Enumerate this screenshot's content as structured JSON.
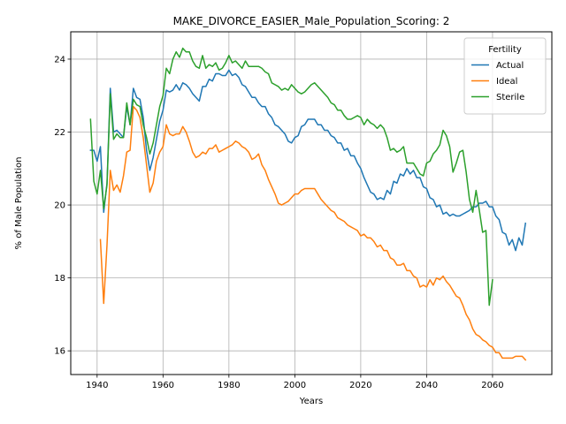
{
  "chart_data": {
    "type": "line",
    "title": "MAKE_DIVORCE_EASIER_Male_Population_Scoring: 2",
    "xlabel": "Years",
    "ylabel": "% of Male Population",
    "xlim": [
      1932,
      2078
    ],
    "ylim": [
      15.35,
      24.75
    ],
    "xticks": [
      1940,
      1960,
      1980,
      2000,
      2020,
      2040,
      2060
    ],
    "yticks": [
      16,
      18,
      20,
      22,
      24
    ],
    "grid": true,
    "legend": {
      "title": "Fertility",
      "placement": "top-right"
    },
    "series": [
      {
        "name": "Actual",
        "color": "#1f77b4",
        "x": [
          1938,
          1939,
          1940,
          1941,
          1942,
          1943,
          1944,
          1945,
          1946,
          1947,
          1948,
          1949,
          1950,
          1951,
          1952,
          1953,
          1954,
          1955,
          1956,
          1957,
          1958,
          1959,
          1960,
          1961,
          1962,
          1963,
          1964,
          1965,
          1966,
          1967,
          1968,
          1969,
          1970,
          1971,
          1972,
          1973,
          1974,
          1975,
          1976,
          1977,
          1978,
          1979,
          1980,
          1981,
          1982,
          1983,
          1984,
          1985,
          1986,
          1987,
          1988,
          1989,
          1990,
          1991,
          1992,
          1993,
          1994,
          1995,
          1996,
          1997,
          1998,
          1999,
          2000,
          2001,
          2002,
          2003,
          2004,
          2005,
          2006,
          2007,
          2008,
          2009,
          2010,
          2011,
          2012,
          2013,
          2014,
          2015,
          2016,
          2017,
          2018,
          2019,
          2020,
          2021,
          2022,
          2023,
          2024,
          2025,
          2026,
          2027,
          2028,
          2029,
          2030,
          2031,
          2032,
          2033,
          2034,
          2035,
          2036,
          2037,
          2038,
          2039,
          2040,
          2041,
          2042,
          2043,
          2044,
          2045,
          2046,
          2047,
          2048,
          2049,
          2050,
          2051,
          2052,
          2053,
          2054,
          2055,
          2056,
          2057,
          2058,
          2059,
          2060,
          2061,
          2062,
          2063,
          2064,
          2065,
          2066,
          2067,
          2068,
          2069,
          2070
        ],
        "values": [
          21.5,
          21.5,
          21.2,
          21.6,
          19.8,
          20.6,
          23.2,
          22.0,
          22.05,
          21.95,
          21.85,
          22.7,
          22.2,
          23.2,
          22.95,
          22.9,
          22.4,
          21.5,
          20.95,
          21.3,
          21.8,
          22.3,
          22.6,
          23.15,
          23.1,
          23.15,
          23.3,
          23.15,
          23.35,
          23.3,
          23.2,
          23.05,
          22.95,
          22.85,
          23.25,
          23.25,
          23.45,
          23.4,
          23.6,
          23.6,
          23.55,
          23.55,
          23.7,
          23.55,
          23.6,
          23.5,
          23.3,
          23.25,
          23.1,
          22.95,
          22.95,
          22.8,
          22.7,
          22.7,
          22.5,
          22.4,
          22.2,
          22.15,
          22.05,
          21.95,
          21.75,
          21.7,
          21.85,
          21.9,
          22.15,
          22.2,
          22.35,
          22.35,
          22.35,
          22.2,
          22.2,
          22.05,
          22.05,
          21.9,
          21.85,
          21.7,
          21.7,
          21.5,
          21.55,
          21.35,
          21.35,
          21.15,
          21.0,
          20.75,
          20.55,
          20.35,
          20.3,
          20.15,
          20.2,
          20.15,
          20.4,
          20.3,
          20.65,
          20.6,
          20.85,
          20.8,
          21.0,
          20.85,
          20.95,
          20.75,
          20.75,
          20.5,
          20.45,
          20.2,
          20.15,
          19.95,
          20.0,
          19.75,
          19.8,
          19.7,
          19.75,
          19.7,
          19.7,
          19.75,
          19.8,
          19.85,
          19.95,
          19.95,
          20.05,
          20.05,
          20.1,
          19.95,
          19.95,
          19.7,
          19.6,
          19.25,
          19.2,
          18.9,
          19.05,
          18.75,
          19.1,
          18.9,
          19.5
        ]
      },
      {
        "name": "Ideal",
        "color": "#ff7f0e",
        "x": [
          1941,
          1942,
          1943,
          1944,
          1945,
          1946,
          1947,
          1948,
          1949,
          1950,
          1951,
          1952,
          1953,
          1954,
          1955,
          1956,
          1957,
          1958,
          1959,
          1960,
          1961,
          1962,
          1963,
          1964,
          1965,
          1966,
          1967,
          1968,
          1969,
          1970,
          1971,
          1972,
          1973,
          1974,
          1975,
          1976,
          1977,
          1978,
          1979,
          1980,
          1981,
          1982,
          1983,
          1984,
          1985,
          1986,
          1987,
          1988,
          1989,
          1990,
          1991,
          1992,
          1993,
          1994,
          1995,
          1996,
          1997,
          1998,
          1999,
          2000,
          2001,
          2002,
          2003,
          2004,
          2005,
          2006,
          2007,
          2008,
          2009,
          2010,
          2011,
          2012,
          2013,
          2014,
          2015,
          2016,
          2017,
          2018,
          2019,
          2020,
          2021,
          2022,
          2023,
          2024,
          2025,
          2026,
          2027,
          2028,
          2029,
          2030,
          2031,
          2032,
          2033,
          2034,
          2035,
          2036,
          2037,
          2038,
          2039,
          2040,
          2041,
          2042,
          2043,
          2044,
          2045,
          2046,
          2047,
          2048,
          2049,
          2050,
          2051,
          2052,
          2053,
          2054,
          2055,
          2056,
          2057,
          2058,
          2059,
          2060,
          2061,
          2062,
          2063,
          2064,
          2065,
          2066,
          2067,
          2068,
          2069,
          2070
        ],
        "values": [
          19.05,
          17.3,
          18.9,
          20.95,
          20.4,
          20.55,
          20.35,
          20.8,
          21.45,
          21.5,
          22.7,
          22.6,
          22.4,
          21.85,
          21.1,
          20.35,
          20.6,
          21.2,
          21.45,
          21.6,
          22.2,
          21.95,
          21.9,
          21.95,
          21.95,
          22.15,
          22.0,
          21.75,
          21.45,
          21.3,
          21.35,
          21.45,
          21.4,
          21.55,
          21.55,
          21.65,
          21.45,
          21.5,
          21.55,
          21.6,
          21.65,
          21.75,
          21.7,
          21.6,
          21.55,
          21.45,
          21.25,
          21.3,
          21.4,
          21.1,
          20.95,
          20.7,
          20.5,
          20.3,
          20.05,
          20.0,
          20.05,
          20.1,
          20.2,
          20.3,
          20.3,
          20.4,
          20.45,
          20.45,
          20.45,
          20.45,
          20.3,
          20.15,
          20.05,
          19.95,
          19.85,
          19.8,
          19.65,
          19.6,
          19.55,
          19.45,
          19.4,
          19.35,
          19.3,
          19.15,
          19.2,
          19.1,
          19.1,
          19.0,
          18.85,
          18.9,
          18.75,
          18.75,
          18.55,
          18.5,
          18.35,
          18.35,
          18.4,
          18.2,
          18.2,
          18.05,
          18.0,
          17.75,
          17.8,
          17.75,
          17.95,
          17.8,
          18.0,
          17.95,
          18.05,
          17.9,
          17.8,
          17.65,
          17.5,
          17.45,
          17.25,
          17.0,
          16.85,
          16.6,
          16.45,
          16.4,
          16.3,
          16.25,
          16.15,
          16.1,
          15.95,
          15.95,
          15.8,
          15.8,
          15.8,
          15.8,
          15.85,
          15.85,
          15.85,
          15.75
        ]
      },
      {
        "name": "Sterile",
        "color": "#2ca02c",
        "x": [
          1938,
          1939,
          1940,
          1941,
          1942,
          1943,
          1944,
          1945,
          1946,
          1947,
          1948,
          1949,
          1950,
          1951,
          1952,
          1953,
          1954,
          1955,
          1956,
          1957,
          1958,
          1959,
          1960,
          1961,
          1962,
          1963,
          1964,
          1965,
          1966,
          1967,
          1968,
          1969,
          1970,
          1971,
          1972,
          1973,
          1974,
          1975,
          1976,
          1977,
          1978,
          1979,
          1980,
          1981,
          1982,
          1983,
          1984,
          1985,
          1986,
          1987,
          1988,
          1989,
          1990,
          1991,
          1992,
          1993,
          1994,
          1995,
          1996,
          1997,
          1998,
          1999,
          2000,
          2001,
          2002,
          2003,
          2004,
          2005,
          2006,
          2007,
          2008,
          2009,
          2010,
          2011,
          2012,
          2013,
          2014,
          2015,
          2016,
          2017,
          2018,
          2019,
          2020,
          2021,
          2022,
          2023,
          2024,
          2025,
          2026,
          2027,
          2028,
          2029,
          2030,
          2031,
          2032,
          2033,
          2034,
          2035,
          2036,
          2037,
          2038,
          2039,
          2040,
          2041,
          2042,
          2043,
          2044,
          2045,
          2046,
          2047,
          2048,
          2049,
          2050,
          2051,
          2052,
          2053,
          2054,
          2055,
          2056,
          2057,
          2058,
          2059,
          2060
        ],
        "values": [
          22.35,
          20.65,
          20.3,
          20.95,
          19.9,
          20.55,
          23.05,
          21.8,
          21.95,
          21.85,
          21.85,
          22.8,
          22.2,
          22.9,
          22.75,
          22.7,
          22.2,
          21.85,
          21.4,
          21.7,
          22.2,
          22.7,
          23.0,
          23.75,
          23.6,
          24.0,
          24.2,
          24.05,
          24.3,
          24.2,
          24.2,
          23.95,
          23.8,
          23.75,
          24.1,
          23.75,
          23.85,
          23.8,
          23.9,
          23.7,
          23.75,
          23.9,
          24.1,
          23.9,
          23.95,
          23.85,
          23.75,
          23.95,
          23.8,
          23.8,
          23.8,
          23.8,
          23.75,
          23.65,
          23.6,
          23.35,
          23.3,
          23.25,
          23.15,
          23.2,
          23.15,
          23.3,
          23.2,
          23.1,
          23.05,
          23.1,
          23.2,
          23.3,
          23.35,
          23.25,
          23.15,
          23.05,
          22.95,
          22.8,
          22.75,
          22.6,
          22.6,
          22.45,
          22.35,
          22.35,
          22.4,
          22.45,
          22.4,
          22.2,
          22.35,
          22.25,
          22.2,
          22.1,
          22.2,
          22.1,
          21.85,
          21.5,
          21.55,
          21.45,
          21.5,
          21.6,
          21.15,
          21.15,
          21.15,
          21.0,
          20.85,
          20.8,
          21.15,
          21.2,
          21.4,
          21.5,
          21.65,
          22.05,
          21.9,
          21.6,
          20.9,
          21.15,
          21.45,
          21.5,
          20.9,
          20.15,
          19.8,
          20.4,
          19.85,
          19.25,
          19.3,
          17.25,
          17.95
        ]
      }
    ]
  }
}
